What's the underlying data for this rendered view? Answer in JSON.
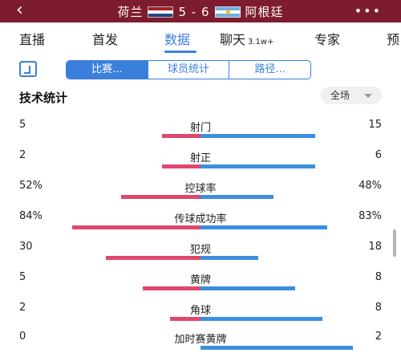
{
  "header": {
    "back_icon": "chevron-left-icon",
    "home_team": "荷兰",
    "away_team": "阿根廷",
    "score": "5 - 6",
    "more_icon": "more-dots-icon"
  },
  "tabs": [
    {
      "label": "直播"
    },
    {
      "label": "首发"
    },
    {
      "label": "数据",
      "active": true
    },
    {
      "label": "聊天",
      "badge": "3.1w+"
    },
    {
      "label": "专家"
    },
    {
      "label": "预"
    }
  ],
  "segments": [
    "比赛...",
    "球员统计",
    "路径..."
  ],
  "section": {
    "title": "技术统计",
    "filter": "全场"
  },
  "colors": {
    "header_bg": "#7d1c2c",
    "home": "#e0476e",
    "away": "#3b8fe0",
    "accent": "#3b7fdc"
  },
  "stats": [
    {
      "name": "射门",
      "home": "5",
      "away": "15",
      "home_share": 0.25,
      "away_share": 0.75
    },
    {
      "name": "射正",
      "home": "2",
      "away": "6",
      "home_share": 0.25,
      "away_share": 0.75
    },
    {
      "name": "控球率",
      "home": "52%",
      "away": "48%",
      "home_share": 0.52,
      "away_share": 0.48
    },
    {
      "name": "传球成功率",
      "home": "84%",
      "away": "83%",
      "home_share": 0.84,
      "away_share": 0.83
    },
    {
      "name": "犯规",
      "home": "30",
      "away": "18",
      "home_share": 0.62,
      "away_share": 0.38
    },
    {
      "name": "黄牌",
      "home": "5",
      "away": "8",
      "home_share": 0.38,
      "away_share": 0.62
    },
    {
      "name": "角球",
      "home": "2",
      "away": "8",
      "home_share": 0.2,
      "away_share": 0.8
    },
    {
      "name": "加时赛黄牌",
      "home": "0",
      "away": "2",
      "home_share": 0.0,
      "away_share": 1.0
    }
  ]
}
